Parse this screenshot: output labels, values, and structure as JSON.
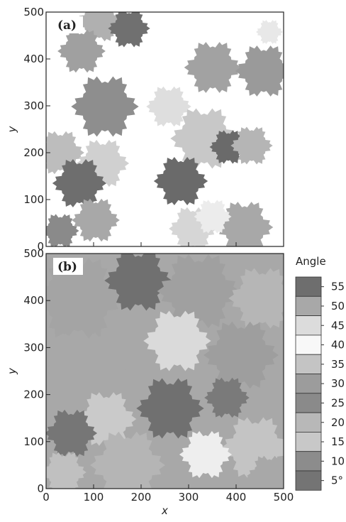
{
  "chart_data": [
    {
      "type": "image",
      "panel_label": "(a)",
      "ylabel": "y",
      "xlim": [
        0,
        500
      ],
      "ylim": [
        0,
        500
      ],
      "xticks": [
        0,
        100,
        200,
        300,
        400,
        500
      ],
      "yticks": [
        0,
        100,
        200,
        300,
        400,
        500
      ]
    },
    {
      "type": "image",
      "panel_label": "(b)",
      "xlabel": "x",
      "ylabel": "y",
      "xlim": [
        0,
        500
      ],
      "ylim": [
        0,
        500
      ],
      "xticks": [
        0,
        100,
        200,
        300,
        400,
        500
      ],
      "yticks": [
        0,
        100,
        200,
        300,
        400,
        500
      ],
      "colorbar": {
        "title": "Angle",
        "ticks": [
          55,
          50,
          45,
          40,
          35,
          30,
          25,
          20,
          15,
          10,
          {
            "value": 5,
            "label": "5°"
          }
        ],
        "colors": [
          "#6e6e6e",
          "#a8a8a8",
          "#dcdcdc",
          "#f8f8f8",
          "#c4c4c4",
          "#9c9c9c",
          "#8a8a8a",
          "#b8b8b8",
          "#c8c8c8",
          "#8c8c8c",
          "#747474"
        ]
      }
    }
  ]
}
